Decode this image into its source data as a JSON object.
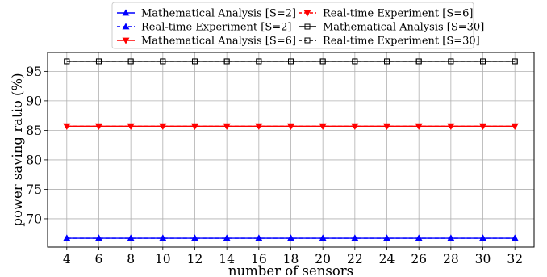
{
  "chart_data": {
    "type": "line",
    "title": "",
    "xlabel": "number of sensors",
    "ylabel": "power saving ratio (%)",
    "x": [
      4,
      6,
      8,
      10,
      12,
      14,
      16,
      18,
      20,
      22,
      24,
      26,
      28,
      30,
      32
    ],
    "xticks": [
      "4",
      "6",
      "8",
      "10",
      "12",
      "14",
      "16",
      "18",
      "20",
      "22",
      "24",
      "26",
      "28",
      "30",
      "32"
    ],
    "yticks": [
      "70",
      "75",
      "80",
      "85",
      "90",
      "95"
    ],
    "xlim": [
      2.8,
      33.2
    ],
    "ylim": [
      65.2,
      98.2
    ],
    "grid": true,
    "legend_position": "top-center, 2 columns",
    "series": [
      {
        "name": "Mathematical Analysis [S=2]",
        "color": "#0000ff",
        "linestyle": "solid",
        "marker": "triangle-up",
        "values": [
          66.7,
          66.7,
          66.7,
          66.7,
          66.7,
          66.7,
          66.7,
          66.7,
          66.7,
          66.7,
          66.7,
          66.7,
          66.7,
          66.7,
          66.7
        ]
      },
      {
        "name": "Real-time Experiment [S=2]",
        "color": "#0000ff",
        "linestyle": "dashed",
        "marker": "triangle-up",
        "values": [
          66.7,
          66.7,
          66.7,
          66.7,
          66.7,
          66.7,
          66.7,
          66.7,
          66.7,
          66.7,
          66.7,
          66.7,
          66.7,
          66.7,
          66.7
        ]
      },
      {
        "name": "Mathematical Analysis [S=6]",
        "color": "#ff0000",
        "linestyle": "solid",
        "marker": "triangle-down",
        "values": [
          85.7,
          85.7,
          85.7,
          85.7,
          85.7,
          85.7,
          85.7,
          85.7,
          85.7,
          85.7,
          85.7,
          85.7,
          85.7,
          85.7,
          85.7
        ]
      },
      {
        "name": "Real-time Experiment [S=6]",
        "color": "#ff0000",
        "linestyle": "dashed",
        "marker": "triangle-down",
        "values": [
          85.7,
          85.7,
          85.7,
          85.7,
          85.7,
          85.7,
          85.7,
          85.7,
          85.7,
          85.7,
          85.7,
          85.7,
          85.7,
          85.7,
          85.7
        ]
      },
      {
        "name": "Mathematical Analysis [S=30]",
        "color": "#000000",
        "linestyle": "solid",
        "marker": "square",
        "values": [
          96.7,
          96.7,
          96.7,
          96.7,
          96.7,
          96.7,
          96.7,
          96.7,
          96.7,
          96.7,
          96.7,
          96.7,
          96.7,
          96.7,
          96.7
        ]
      },
      {
        "name": "Real-time Experiment [S=30]",
        "color": "#000000",
        "linestyle": "dashed",
        "marker": "square",
        "values": [
          96.7,
          96.7,
          96.7,
          96.7,
          96.7,
          96.7,
          96.7,
          96.7,
          96.7,
          96.7,
          96.7,
          96.7,
          96.7,
          96.7,
          96.7
        ]
      }
    ]
  }
}
